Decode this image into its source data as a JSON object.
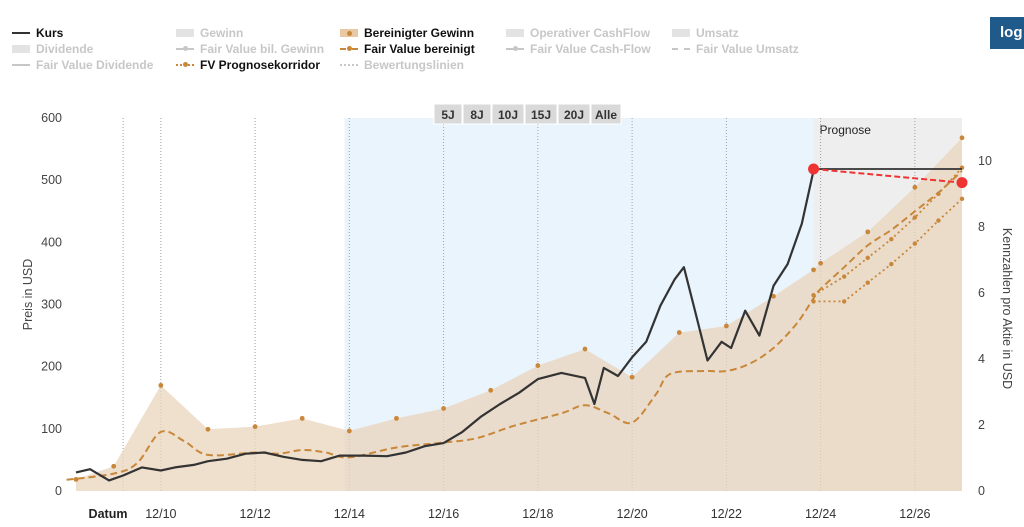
{
  "legend": {
    "kurs": "Kurs",
    "gewinn": "Gewinn",
    "bereinigter_gewinn": "Bereinigter Gewinn",
    "operativer_cashflow": "Operativer CashFlow",
    "umsatz": "Umsatz",
    "dividende": "Dividende",
    "fv_bil_gewinn": "Fair Value bil. Gewinn",
    "fv_bereinigt": "Fair Value bereinigt",
    "fv_cashflow": "Fair Value Cash-Flow",
    "fv_umsatz": "Fair Value Umsatz",
    "fv_dividende": "Fair Value Dividende",
    "fv_prognosekorridor": "FV Prognosekorridor",
    "bewertungslinien": "Bewertungslinien"
  },
  "login_label": "log",
  "period_buttons": [
    "5J",
    "8J",
    "10J",
    "15J",
    "20J",
    "Alle"
  ],
  "colors": {
    "kurs": "#333333",
    "earnings": "#c8873a",
    "earnings_area": "#e9d4bc",
    "selection": "#eaf4fc",
    "forecast_area": "#eeeeee",
    "marker": "#ee3333",
    "disabled": "#c7c7c7",
    "login": "#1f5a8a"
  },
  "chart_data": {
    "type": "line",
    "xlabel": "Datum",
    "ylabel_left": "Preis in USD",
    "ylabel_right": "Kennzahlen pro Aktie in USD",
    "x_ticks": [
      "12/10",
      "12/12",
      "12/14",
      "12/16",
      "12/18",
      "12/20",
      "12/22",
      "12/24",
      "12/26"
    ],
    "y_left_ticks": [
      "0",
      "100",
      "200",
      "300",
      "400",
      "500",
      "600"
    ],
    "y_right_ticks": [
      "0",
      "2",
      "4",
      "6",
      "8",
      "10"
    ],
    "ylim_left": [
      0,
      600
    ],
    "ylim_right": [
      0,
      11.3
    ],
    "xlim": [
      2008.2,
      2027.0
    ],
    "forecast_label": "Prognose",
    "forecast_start": 2023.85,
    "selection_start": 2013.9,
    "series": [
      {
        "name": "Bereinigter Gewinn",
        "points": [
          [
            2008.2,
            0.35
          ],
          [
            2009.0,
            0.75
          ],
          [
            2010.0,
            3.2
          ],
          [
            2011.0,
            1.87
          ],
          [
            2012.0,
            1.95
          ],
          [
            2013.0,
            2.2
          ],
          [
            2014.0,
            1.82
          ],
          [
            2015.0,
            2.2
          ],
          [
            2016.0,
            2.5
          ],
          [
            2017.0,
            3.05
          ],
          [
            2018.0,
            3.8
          ],
          [
            2019.0,
            4.3
          ],
          [
            2020.0,
            3.45
          ],
          [
            2021.0,
            4.8
          ],
          [
            2022.0,
            5.0
          ],
          [
            2023.0,
            5.9
          ],
          [
            2023.85,
            6.7
          ],
          [
            2024.0,
            6.9
          ],
          [
            2025.0,
            7.85
          ],
          [
            2026.0,
            9.2
          ],
          [
            2027.0,
            10.7
          ]
        ]
      },
      {
        "name": "Fair Value bereinigt",
        "points": [
          [
            2008.0,
            18
          ],
          [
            2009.0,
            28
          ],
          [
            2009.5,
            45
          ],
          [
            2010.0,
            95
          ],
          [
            2010.5,
            80
          ],
          [
            2011.0,
            58
          ],
          [
            2012.0,
            62
          ],
          [
            2012.5,
            60
          ],
          [
            2013.0,
            66
          ],
          [
            2013.5,
            62
          ],
          [
            2014.0,
            54
          ],
          [
            2015.0,
            70
          ],
          [
            2016.0,
            78
          ],
          [
            2016.7,
            85
          ],
          [
            2017.5,
            105
          ],
          [
            2018.5,
            125
          ],
          [
            2019.0,
            138
          ],
          [
            2019.5,
            125
          ],
          [
            2020.0,
            110
          ],
          [
            2020.5,
            155
          ],
          [
            2020.8,
            188
          ],
          [
            2021.5,
            193
          ],
          [
            2022.0,
            193
          ],
          [
            2022.5,
            205
          ],
          [
            2023.0,
            230
          ],
          [
            2023.5,
            270
          ],
          [
            2023.85,
            310
          ],
          [
            2024.0,
            325
          ],
          [
            2024.5,
            360
          ],
          [
            2025.0,
            395
          ],
          [
            2025.5,
            420
          ],
          [
            2026.0,
            450
          ],
          [
            2026.5,
            480
          ],
          [
            2027.0,
            515
          ]
        ]
      },
      {
        "name": "FV Prognosekorridor",
        "upper": [
          [
            2023.85,
            315
          ],
          [
            2024.5,
            345
          ],
          [
            2025.0,
            375
          ],
          [
            2025.5,
            405
          ],
          [
            2026.0,
            440
          ],
          [
            2026.5,
            478
          ],
          [
            2027.0,
            520
          ]
        ],
        "lower": [
          [
            2023.85,
            305
          ],
          [
            2024.5,
            305
          ],
          [
            2025.0,
            335
          ],
          [
            2025.5,
            365
          ],
          [
            2026.0,
            398
          ],
          [
            2026.5,
            435
          ],
          [
            2027.0,
            470
          ]
        ]
      },
      {
        "name": "Kurs",
        "points": [
          [
            2008.2,
            30
          ],
          [
            2008.5,
            35
          ],
          [
            2008.9,
            17
          ],
          [
            2009.2,
            25
          ],
          [
            2009.6,
            38
          ],
          [
            2010.0,
            33
          ],
          [
            2010.3,
            38
          ],
          [
            2010.7,
            42
          ],
          [
            2011.0,
            48
          ],
          [
            2011.4,
            52
          ],
          [
            2011.8,
            60
          ],
          [
            2012.2,
            62
          ],
          [
            2012.6,
            55
          ],
          [
            2013.0,
            50
          ],
          [
            2013.4,
            48
          ],
          [
            2013.8,
            57
          ],
          [
            2014.3,
            57
          ],
          [
            2014.8,
            56
          ],
          [
            2015.2,
            62
          ],
          [
            2015.6,
            72
          ],
          [
            2016.0,
            77
          ],
          [
            2016.4,
            95
          ],
          [
            2016.8,
            120
          ],
          [
            2017.2,
            140
          ],
          [
            2017.6,
            158
          ],
          [
            2018.0,
            180
          ],
          [
            2018.5,
            190
          ],
          [
            2019.0,
            182
          ],
          [
            2019.2,
            140
          ],
          [
            2019.4,
            198
          ],
          [
            2019.7,
            185
          ],
          [
            2020.0,
            215
          ],
          [
            2020.3,
            240
          ],
          [
            2020.6,
            298
          ],
          [
            2020.9,
            340
          ],
          [
            2021.1,
            360
          ],
          [
            2021.3,
            300
          ],
          [
            2021.6,
            210
          ],
          [
            2021.9,
            240
          ],
          [
            2022.1,
            230
          ],
          [
            2022.4,
            290
          ],
          [
            2022.7,
            250
          ],
          [
            2023.0,
            330
          ],
          [
            2023.3,
            365
          ],
          [
            2023.6,
            430
          ],
          [
            2023.85,
            515
          ]
        ]
      },
      {
        "name": "Prognose Kurs",
        "points": [
          [
            2023.85,
            518
          ],
          [
            2027.0,
            496
          ]
        ]
      },
      {
        "name": "Aktueller Kurs",
        "points": [
          [
            2023.85,
            518
          ],
          [
            2027.0,
            518
          ]
        ]
      }
    ]
  }
}
